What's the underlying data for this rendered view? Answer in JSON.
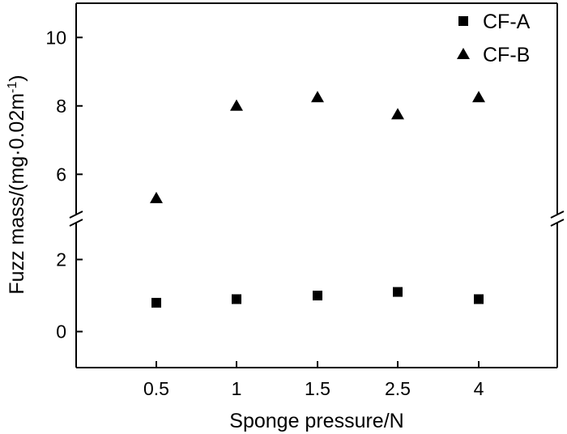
{
  "chart_data": {
    "type": "scatter",
    "xlabel": "Sponge pressure/N",
    "ylabel_main": "Fuzz mass/(mg·0.02m",
    "ylabel_sup": "-1",
    "ylabel_close": ")",
    "categories": [
      "0.5",
      "1",
      "1.5",
      "2.5",
      "4"
    ],
    "axis_break": true,
    "y_lower_range": [
      -1,
      3
    ],
    "y_upper_range": [
      4.8,
      11
    ],
    "y_lower_ticks": [
      "0",
      "2"
    ],
    "y_upper_ticks": [
      "6",
      "8",
      "10"
    ],
    "legend_position": "top-right",
    "series": [
      {
        "name": "CF-A",
        "marker": "square",
        "values": [
          0.8,
          0.9,
          1.0,
          1.1,
          0.9
        ]
      },
      {
        "name": "CF-B",
        "marker": "triangle",
        "values": [
          5.3,
          8.0,
          8.25,
          7.75,
          8.25
        ]
      }
    ],
    "colors": {
      "marker": "#000000",
      "axis": "#000000"
    }
  }
}
